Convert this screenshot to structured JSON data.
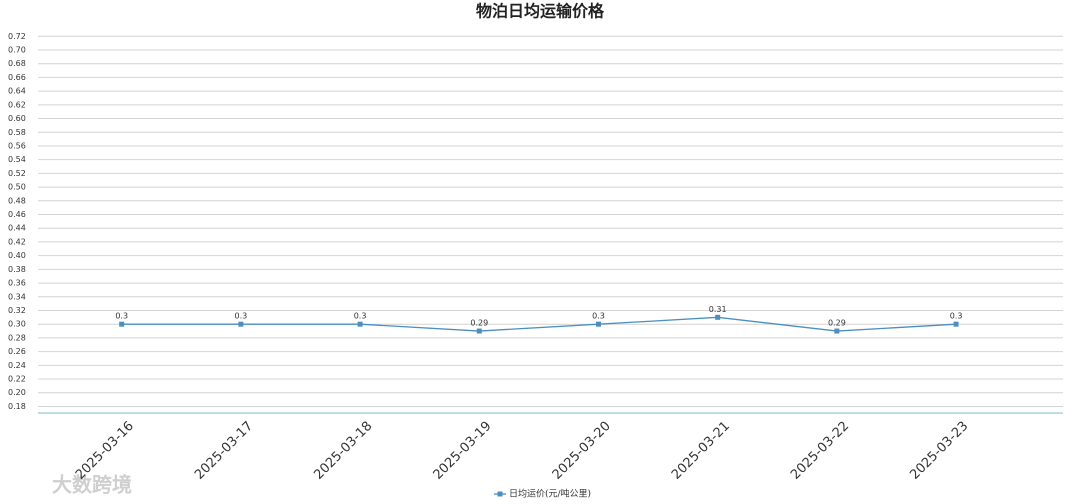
{
  "chart_data": {
    "type": "line",
    "title": "物泊日均运输价格",
    "categories": [
      "2025-03-16",
      "2025-03-17",
      "2025-03-18",
      "2025-03-19",
      "2025-03-20",
      "2025-03-21",
      "2025-03-22",
      "2025-03-23"
    ],
    "series": [
      {
        "name": "日均运价(元/吨公里)",
        "color": "#4a8fc0",
        "values": [
          0.3,
          0.3,
          0.3,
          0.29,
          0.3,
          0.31,
          0.29,
          0.3
        ]
      }
    ],
    "ylim": [
      0.17,
      0.72
    ],
    "yticks": [
      0.18,
      {
        "value": 0.2,
        "label": "0.20"
      },
      0.22,
      0.24,
      0.26,
      0.28,
      {
        "value": 0.3,
        "label": "0.30"
      },
      0.32,
      0.34,
      0.36,
      0.38,
      {
        "value": 0.4,
        "label": "0.40"
      },
      0.42,
      0.44,
      0.46,
      0.48,
      {
        "value": 0.5,
        "label": "0.50"
      },
      0.52,
      0.54,
      0.56,
      0.58,
      {
        "value": 0.6,
        "label": "0.60"
      },
      0.62,
      0.64,
      0.66,
      0.68,
      {
        "value": 0.7,
        "label": "0.70"
      },
      0.72
    ],
    "grid": true,
    "legend": "bottom",
    "watermark": "大数跨境"
  }
}
